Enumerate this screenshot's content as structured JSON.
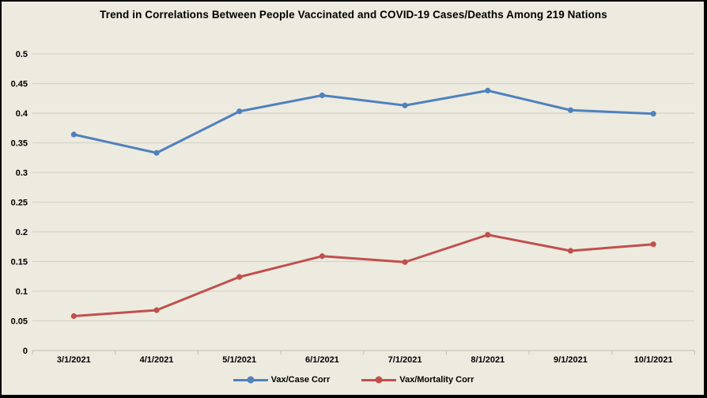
{
  "chart": {
    "background_color": "#EDEBE0",
    "border_color": "#000000",
    "gridline_color": "#D6D3C6",
    "axis_line_color": "#C9C6B9",
    "text_color": "#000000"
  },
  "chart_data": {
    "type": "line",
    "title": "Trend in Correlations Between People Vaccinated and COVID-19 Cases/Deaths Among 219 Nations",
    "categories": [
      "3/1/2021",
      "4/1/2021",
      "5/1/2021",
      "6/1/2021",
      "7/1/2021",
      "8/1/2021",
      "9/1/2021",
      "10/1/2021"
    ],
    "series": [
      {
        "name": "Vax/Case Corr",
        "color": "#4F81BD",
        "values": [
          0.364,
          0.333,
          0.403,
          0.43,
          0.413,
          0.438,
          0.405,
          0.399
        ]
      },
      {
        "name": "Vax/Mortality Corr",
        "color": "#C0504D",
        "values": [
          0.058,
          0.068,
          0.124,
          0.159,
          0.149,
          0.195,
          0.168,
          0.179
        ]
      }
    ],
    "xlabel": "",
    "ylabel": "",
    "ylim": [
      0,
      0.5
    ],
    "ytick_step": 0.05,
    "ytick_labels": [
      "0",
      "0.05",
      "0.1",
      "0.15",
      "0.2",
      "0.25",
      "0.3",
      "0.35",
      "0.4",
      "0.45",
      "0.5"
    ],
    "grid": true,
    "legend_position": "bottom"
  }
}
